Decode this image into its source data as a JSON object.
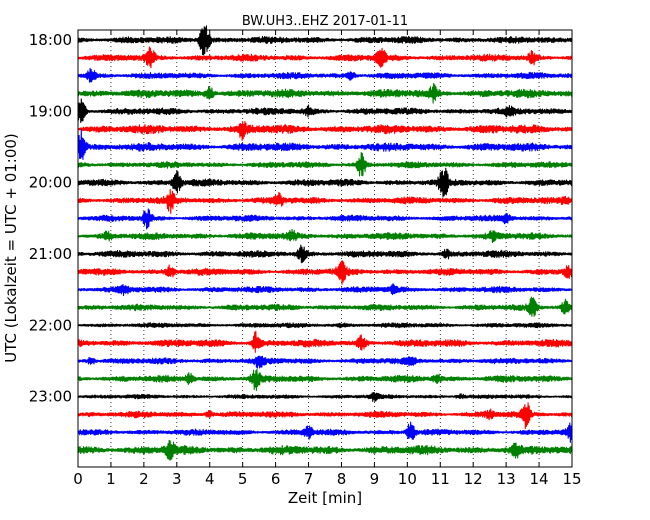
{
  "chart_data": {
    "type": "line",
    "title": "BW.UH3..EHZ 2017-01-11",
    "xlabel": "Zeit  [min]",
    "ylabel": "UTC (Lokalzeit = UTC + 01:00)",
    "xlim": [
      0,
      15
    ],
    "x_ticks": [
      0,
      1,
      2,
      3,
      4,
      5,
      6,
      7,
      8,
      9,
      10,
      11,
      12,
      13,
      14,
      15
    ],
    "x_tick_labels": [
      "0",
      "1",
      "2",
      "3",
      "4",
      "5",
      "6",
      "7",
      "8",
      "9",
      "10",
      "11",
      "12",
      "13",
      "14",
      "15"
    ],
    "y_tick_labels": [
      "18:00",
      "19:00",
      "20:00",
      "21:00",
      "22:00",
      "23:00"
    ],
    "vertical_grid": "dotted",
    "trace_interval_min": 15,
    "trace_colors": [
      "#000000",
      "#ff0000",
      "#0000ff",
      "#008000"
    ],
    "traces": [
      {
        "start": "18:00",
        "color": "#000000",
        "amplitude": 1.0,
        "events": [
          [
            3.8,
            2.2
          ],
          [
            3.9,
            1.8
          ]
        ]
      },
      {
        "start": "18:15",
        "color": "#ff0000",
        "amplitude": 1.0,
        "events": [
          [
            2.2,
            2.0
          ],
          [
            9.2,
            2.0
          ],
          [
            13.8,
            1.6
          ]
        ]
      },
      {
        "start": "18:30",
        "color": "#0000ff",
        "amplitude": 0.9,
        "events": [
          [
            0.4,
            1.8
          ],
          [
            8.3,
            1.4
          ]
        ]
      },
      {
        "start": "18:45",
        "color": "#008000",
        "amplitude": 1.2,
        "events": [
          [
            4.0,
            1.6
          ],
          [
            10.8,
            1.6
          ]
        ]
      },
      {
        "start": "19:00",
        "color": "#000000",
        "amplitude": 1.0,
        "events": [
          [
            0.1,
            2.2
          ],
          [
            7.0,
            1.4
          ],
          [
            13.1,
            1.4
          ]
        ]
      },
      {
        "start": "19:15",
        "color": "#ff0000",
        "amplitude": 1.3,
        "events": [
          [
            5.0,
            1.6
          ]
        ]
      },
      {
        "start": "19:30",
        "color": "#0000ff",
        "amplitude": 1.2,
        "events": [
          [
            0.1,
            2.4
          ]
        ]
      },
      {
        "start": "19:45",
        "color": "#008000",
        "amplitude": 0.9,
        "events": [
          [
            8.6,
            2.4
          ]
        ]
      },
      {
        "start": "20:00",
        "color": "#000000",
        "amplitude": 1.0,
        "events": [
          [
            3.0,
            2.2
          ],
          [
            11.1,
            2.6
          ]
        ]
      },
      {
        "start": "20:15",
        "color": "#ff0000",
        "amplitude": 1.0,
        "events": [
          [
            2.8,
            2.0
          ],
          [
            6.1,
            1.6
          ],
          [
            14.8,
            1.4
          ]
        ]
      },
      {
        "start": "20:30",
        "color": "#0000ff",
        "amplitude": 0.9,
        "events": [
          [
            2.1,
            2.0
          ],
          [
            13.0,
            1.4
          ]
        ]
      },
      {
        "start": "20:45",
        "color": "#008000",
        "amplitude": 1.0,
        "events": [
          [
            0.9,
            1.4
          ],
          [
            6.5,
            1.4
          ],
          [
            12.6,
            1.4
          ]
        ]
      },
      {
        "start": "21:00",
        "color": "#000000",
        "amplitude": 1.0,
        "events": [
          [
            6.8,
            1.8
          ],
          [
            11.2,
            1.4
          ]
        ]
      },
      {
        "start": "21:15",
        "color": "#ff0000",
        "amplitude": 1.0,
        "events": [
          [
            2.8,
            1.6
          ],
          [
            8.0,
            2.0
          ],
          [
            14.9,
            1.6
          ]
        ]
      },
      {
        "start": "21:30",
        "color": "#0000ff",
        "amplitude": 0.9,
        "events": [
          [
            1.4,
            1.4
          ],
          [
            9.6,
            1.4
          ]
        ]
      },
      {
        "start": "21:45",
        "color": "#008000",
        "amplitude": 0.9,
        "events": [
          [
            13.8,
            2.0
          ],
          [
            14.8,
            1.8
          ]
        ]
      },
      {
        "start": "22:00",
        "color": "#000000",
        "amplitude": 0.7,
        "events": [
          [
            8.0,
            1.2
          ]
        ]
      },
      {
        "start": "22:15",
        "color": "#ff0000",
        "amplitude": 1.1,
        "events": [
          [
            5.4,
            2.0
          ],
          [
            8.6,
            1.6
          ]
        ]
      },
      {
        "start": "22:30",
        "color": "#0000ff",
        "amplitude": 0.9,
        "events": [
          [
            0.4,
            1.4
          ],
          [
            5.5,
            1.6
          ],
          [
            10.1,
            1.4
          ]
        ]
      },
      {
        "start": "22:45",
        "color": "#008000",
        "amplitude": 1.0,
        "events": [
          [
            3.4,
            1.6
          ],
          [
            5.4,
            2.0
          ],
          [
            10.9,
            1.4
          ]
        ]
      },
      {
        "start": "23:00",
        "color": "#000000",
        "amplitude": 0.6,
        "events": [
          [
            9.0,
            1.6
          ],
          [
            11.6,
            1.4
          ]
        ]
      },
      {
        "start": "23:15",
        "color": "#ff0000",
        "amplitude": 0.9,
        "events": [
          [
            4.0,
            1.4
          ],
          [
            12.5,
            1.4
          ],
          [
            13.6,
            2.4
          ]
        ]
      },
      {
        "start": "23:30",
        "color": "#0000ff",
        "amplitude": 0.9,
        "events": [
          [
            7.0,
            1.6
          ],
          [
            10.1,
            2.2
          ],
          [
            15.0,
            2.0
          ]
        ]
      },
      {
        "start": "23:45",
        "color": "#008000",
        "amplitude": 1.3,
        "events": [
          [
            2.8,
            1.6
          ],
          [
            13.3,
            1.4
          ]
        ]
      }
    ]
  }
}
